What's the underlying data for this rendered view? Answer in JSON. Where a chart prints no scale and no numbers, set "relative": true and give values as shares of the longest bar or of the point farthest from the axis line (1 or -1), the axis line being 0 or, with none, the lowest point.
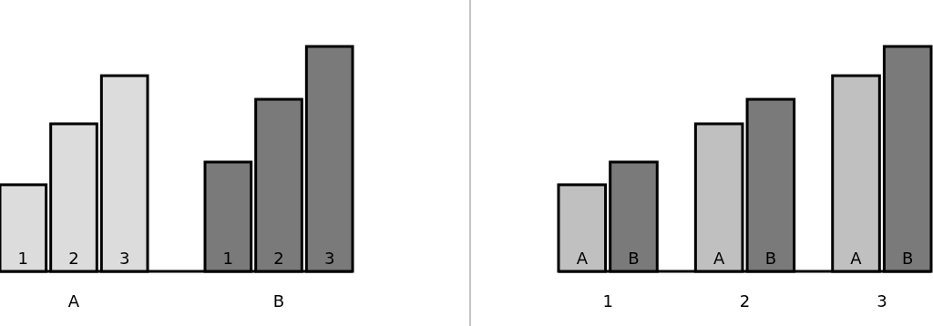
{
  "chart_data": [
    {
      "type": "bar",
      "relative": true,
      "categories": [
        "A",
        "B"
      ],
      "series": [
        {
          "name": "1",
          "colors": [
            "#dcdcdc",
            "#7a7a7a"
          ],
          "values": [
            0.385,
            0.486
          ]
        },
        {
          "name": "2",
          "colors": [
            "#dcdcdc",
            "#7a7a7a"
          ],
          "values": [
            0.656,
            0.765
          ]
        },
        {
          "name": "3",
          "colors": [
            "#dcdcdc",
            "#7a7a7a"
          ],
          "values": [
            0.87,
            1
          ]
        }
      ]
    },
    {
      "type": "bar",
      "relative": true,
      "categories": [
        "1",
        "2",
        "3"
      ],
      "series": [
        {
          "name": "A",
          "color": "#c0c0c0",
          "values": [
            0.385,
            0.656,
            0.87
          ]
        },
        {
          "name": "B",
          "color": "#7a7a7a",
          "values": [
            0.486,
            0.765,
            1
          ]
        }
      ]
    }
  ]
}
